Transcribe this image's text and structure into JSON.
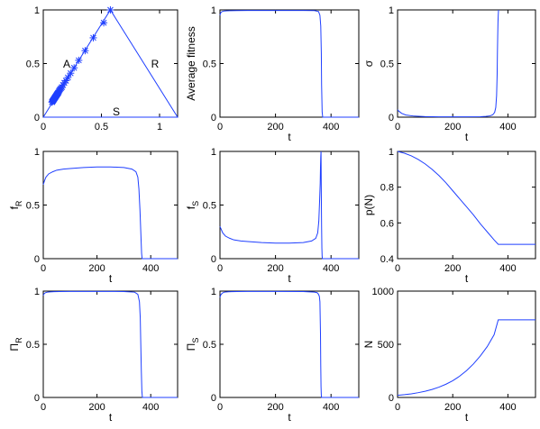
{
  "chart_data": [
    {
      "type": "line",
      "title": "",
      "xlabel": "",
      "ylabel": "",
      "xlim": [
        0,
        1.155
      ],
      "ylim": [
        0,
        1
      ],
      "xticks": [
        "0",
        "0.5",
        "1"
      ],
      "yticks": [
        "0",
        "0.5",
        "1"
      ],
      "annotations": [
        "A",
        "R",
        "S"
      ],
      "series": [
        {
          "style": "line",
          "x": [
            0,
            0.577,
            1.155,
            0
          ],
          "y": [
            0,
            1,
            0,
            0
          ]
        },
        {
          "style": "marker-asterisk",
          "x": [
            0.075,
            0.078,
            0.081,
            0.084,
            0.087,
            0.09,
            0.093,
            0.096,
            0.099,
            0.102,
            0.105,
            0.108,
            0.111,
            0.114,
            0.117,
            0.12,
            0.123,
            0.126,
            0.13,
            0.134,
            0.139,
            0.145,
            0.152,
            0.16,
            0.17,
            0.181,
            0.195,
            0.212,
            0.235,
            0.265,
            0.305,
            0.36,
            0.43,
            0.52,
            0.577
          ],
          "y": [
            0.14,
            0.145,
            0.15,
            0.155,
            0.16,
            0.165,
            0.17,
            0.175,
            0.18,
            0.185,
            0.19,
            0.195,
            0.2,
            0.205,
            0.21,
            0.215,
            0.22,
            0.225,
            0.23,
            0.24,
            0.25,
            0.26,
            0.27,
            0.28,
            0.3,
            0.32,
            0.34,
            0.37,
            0.41,
            0.46,
            0.53,
            0.62,
            0.74,
            0.88,
            1.0
          ]
        }
      ]
    },
    {
      "type": "line",
      "title": "",
      "xlabel": "t",
      "ylabel": "Average fitness",
      "xlim": [
        0,
        500
      ],
      "ylim": [
        0,
        1
      ],
      "xticks": [
        "0",
        "200",
        "400"
      ],
      "yticks": [
        "0",
        "0.5",
        "1"
      ],
      "series": [
        {
          "x": [
            0,
            3,
            8,
            15,
            25,
            40,
            60,
            100,
            200,
            300,
            340,
            355,
            360,
            363,
            365,
            366,
            368,
            370,
            500
          ],
          "y": [
            0.95,
            0.975,
            0.985,
            0.99,
            0.992,
            0.993,
            0.994,
            0.995,
            0.995,
            0.995,
            0.994,
            0.985,
            0.95,
            0.85,
            0.6,
            0.3,
            0.05,
            0,
            0
          ]
        }
      ]
    },
    {
      "type": "line",
      "title": "",
      "xlabel": "t",
      "ylabel": "σ",
      "xlim": [
        0,
        500
      ],
      "ylim": [
        0,
        1
      ],
      "xticks": [
        "0",
        "200",
        "400"
      ],
      "yticks": [
        "0",
        "0.5",
        "1"
      ],
      "series": [
        {
          "x": [
            0,
            5,
            15,
            30,
            60,
            100,
            150,
            200,
            250,
            300,
            320,
            335,
            345,
            352,
            356,
            359,
            361,
            362,
            363,
            364,
            365,
            366
          ],
          "y": [
            0.07,
            0.055,
            0.035,
            0.02,
            0.01,
            0.005,
            0.003,
            0.003,
            0.003,
            0.004,
            0.007,
            0.012,
            0.022,
            0.045,
            0.09,
            0.2,
            0.4,
            0.6,
            0.75,
            0.88,
            0.95,
            1.0
          ]
        }
      ]
    },
    {
      "type": "line",
      "title": "",
      "xlabel": "t",
      "ylabel": "f",
      "ylabel_subscript": "R",
      "xlim": [
        0,
        500
      ],
      "ylim": [
        0,
        1
      ],
      "xticks": [
        "0",
        "200",
        "400"
      ],
      "yticks": [
        "0",
        "0.5",
        "1"
      ],
      "series": [
        {
          "x": [
            0,
            5,
            10,
            20,
            35,
            50,
            75,
            100,
            150,
            200,
            250,
            300,
            330,
            345,
            352,
            356,
            360,
            363,
            366,
            368,
            500
          ],
          "y": [
            0.69,
            0.73,
            0.76,
            0.79,
            0.81,
            0.825,
            0.835,
            0.84,
            0.85,
            0.855,
            0.855,
            0.85,
            0.835,
            0.81,
            0.76,
            0.65,
            0.45,
            0.25,
            0.05,
            0,
            0
          ]
        }
      ]
    },
    {
      "type": "line",
      "title": "",
      "xlabel": "t",
      "ylabel": "f",
      "ylabel_subscript": "S",
      "xlim": [
        0,
        500
      ],
      "ylim": [
        0,
        1
      ],
      "xticks": [
        "0",
        "200",
        "400"
      ],
      "yticks": [
        "0",
        "0.5",
        "1"
      ],
      "series": [
        {
          "x": [
            0,
            5,
            10,
            20,
            35,
            50,
            75,
            100,
            150,
            200,
            250,
            300,
            330,
            345,
            352,
            356,
            359,
            361,
            362,
            363,
            364,
            365,
            366,
            367,
            368,
            369,
            370,
            500
          ],
          "y": [
            0.3,
            0.27,
            0.24,
            0.21,
            0.19,
            0.175,
            0.165,
            0.16,
            0.15,
            0.145,
            0.145,
            0.15,
            0.165,
            0.19,
            0.24,
            0.35,
            0.55,
            0.7,
            0.85,
            0.95,
            1.0,
            0.6,
            0.3,
            0.1,
            0.02,
            0,
            0,
            0
          ]
        }
      ]
    },
    {
      "type": "line",
      "title": "",
      "xlabel": "t",
      "ylabel": "p(N)",
      "xlim": [
        0,
        500
      ],
      "ylim": [
        0.4,
        1
      ],
      "xticks": [
        "0",
        "200",
        "400"
      ],
      "yticks": [
        "0.4",
        "0.6",
        "0.8",
        "1"
      ],
      "series": [
        {
          "x": [
            0,
            25,
            50,
            75,
            100,
            125,
            150,
            175,
            200,
            225,
            250,
            275,
            300,
            325,
            350,
            365,
            500
          ],
          "y": [
            1.0,
            0.99,
            0.975,
            0.955,
            0.93,
            0.9,
            0.865,
            0.825,
            0.78,
            0.735,
            0.69,
            0.645,
            0.595,
            0.55,
            0.505,
            0.48,
            0.48
          ]
        }
      ]
    },
    {
      "type": "line",
      "title": "",
      "xlabel": "t",
      "ylabel": "Π",
      "ylabel_subscript": "R",
      "xlim": [
        0,
        500
      ],
      "ylim": [
        0,
        1
      ],
      "xticks": [
        "0",
        "200",
        "400"
      ],
      "yticks": [
        "0",
        "0.5",
        "1"
      ],
      "series": [
        {
          "x": [
            0,
            3,
            8,
            15,
            25,
            40,
            60,
            100,
            200,
            300,
            340,
            352,
            358,
            361,
            363,
            365,
            367,
            369,
            500
          ],
          "y": [
            0.96,
            0.975,
            0.985,
            0.99,
            0.993,
            0.995,
            0.996,
            0.997,
            0.997,
            0.996,
            0.99,
            0.97,
            0.9,
            0.75,
            0.5,
            0.25,
            0.06,
            0,
            0
          ]
        }
      ]
    },
    {
      "type": "line",
      "title": "",
      "xlabel": "t",
      "ylabel": "Π",
      "ylabel_subscript": "S",
      "xlim": [
        0,
        500
      ],
      "ylim": [
        0,
        1
      ],
      "xticks": [
        "0",
        "200",
        "400"
      ],
      "yticks": [
        "0",
        "0.5",
        "1"
      ],
      "series": [
        {
          "x": [
            0,
            3,
            8,
            15,
            25,
            40,
            60,
            100,
            200,
            300,
            340,
            350,
            355,
            358,
            360,
            362,
            363,
            364,
            365,
            366,
            500
          ],
          "y": [
            0.94,
            0.965,
            0.98,
            0.99,
            0.993,
            0.995,
            0.996,
            0.997,
            0.997,
            0.996,
            0.99,
            0.985,
            0.97,
            0.95,
            0.9,
            0.6,
            0.3,
            0.1,
            0.02,
            0,
            0
          ]
        }
      ]
    },
    {
      "type": "line",
      "title": "",
      "xlabel": "t",
      "ylabel": "N",
      "xlim": [
        0,
        500
      ],
      "ylim": [
        0,
        1000
      ],
      "xticks": [
        "0",
        "200",
        "400"
      ],
      "yticks": [
        "0",
        "500",
        "1000"
      ],
      "series": [
        {
          "x": [
            0,
            25,
            50,
            75,
            100,
            125,
            150,
            175,
            200,
            225,
            250,
            275,
            300,
            325,
            350,
            365,
            500
          ],
          "y": [
            20,
            26,
            34,
            45,
            58,
            75,
            97,
            124,
            157,
            200,
            252,
            315,
            390,
            478,
            590,
            730,
            730
          ]
        }
      ]
    }
  ]
}
